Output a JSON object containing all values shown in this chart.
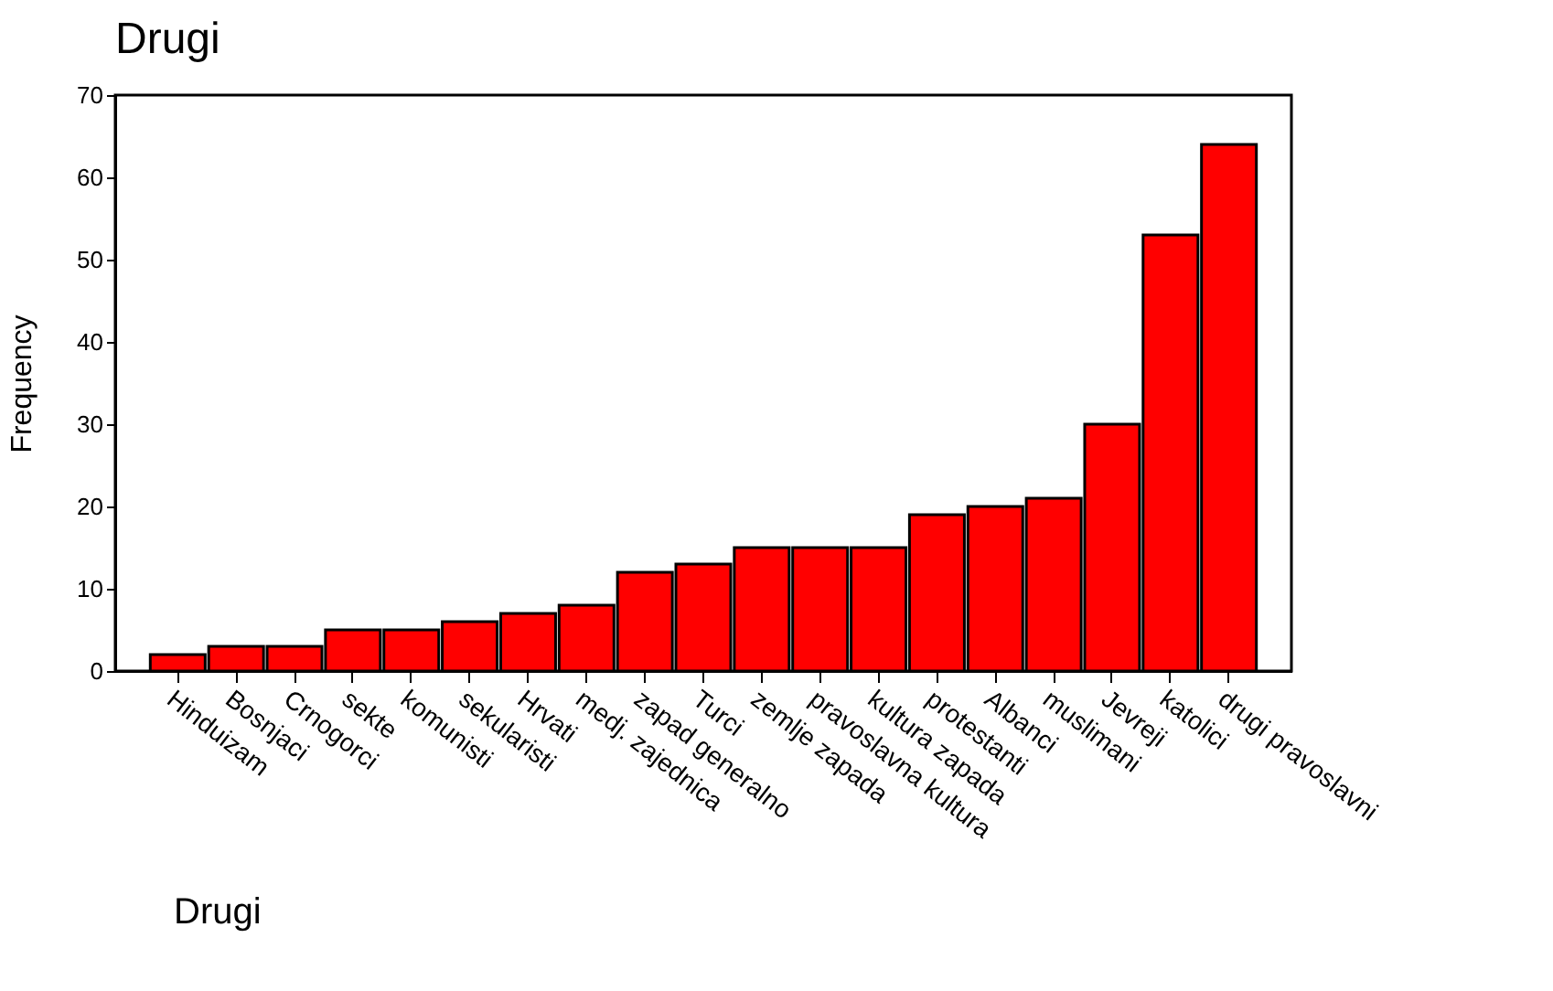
{
  "chart_data": {
    "type": "bar",
    "title": "Drugi",
    "ylabel": "Frequency",
    "annotations": [
      "Drugi"
    ],
    "categories": [
      "Hinduizam",
      "Bosnjaci",
      "Crnogorci",
      "sekte",
      "komunisti",
      "sekularisti",
      "Hrvati",
      "medj. zajednica",
      "zapad generalno",
      "Turci",
      "zemlje zapada",
      "pravoslavna kultura",
      "kultura zapada",
      "protestanti",
      "Albanci",
      "muslimani",
      "Jevreji",
      "katolici",
      "drugi pravoslavni"
    ],
    "values": [
      2,
      3,
      3,
      5,
      5,
      6,
      7,
      8,
      12,
      13,
      15,
      15,
      15,
      19,
      20,
      21,
      30,
      53,
      64
    ],
    "color": "#ff0000",
    "ylim": [
      0,
      70
    ],
    "yticks": [
      0,
      10,
      20,
      30,
      40,
      50,
      60,
      70
    ],
    "grid": false
  }
}
